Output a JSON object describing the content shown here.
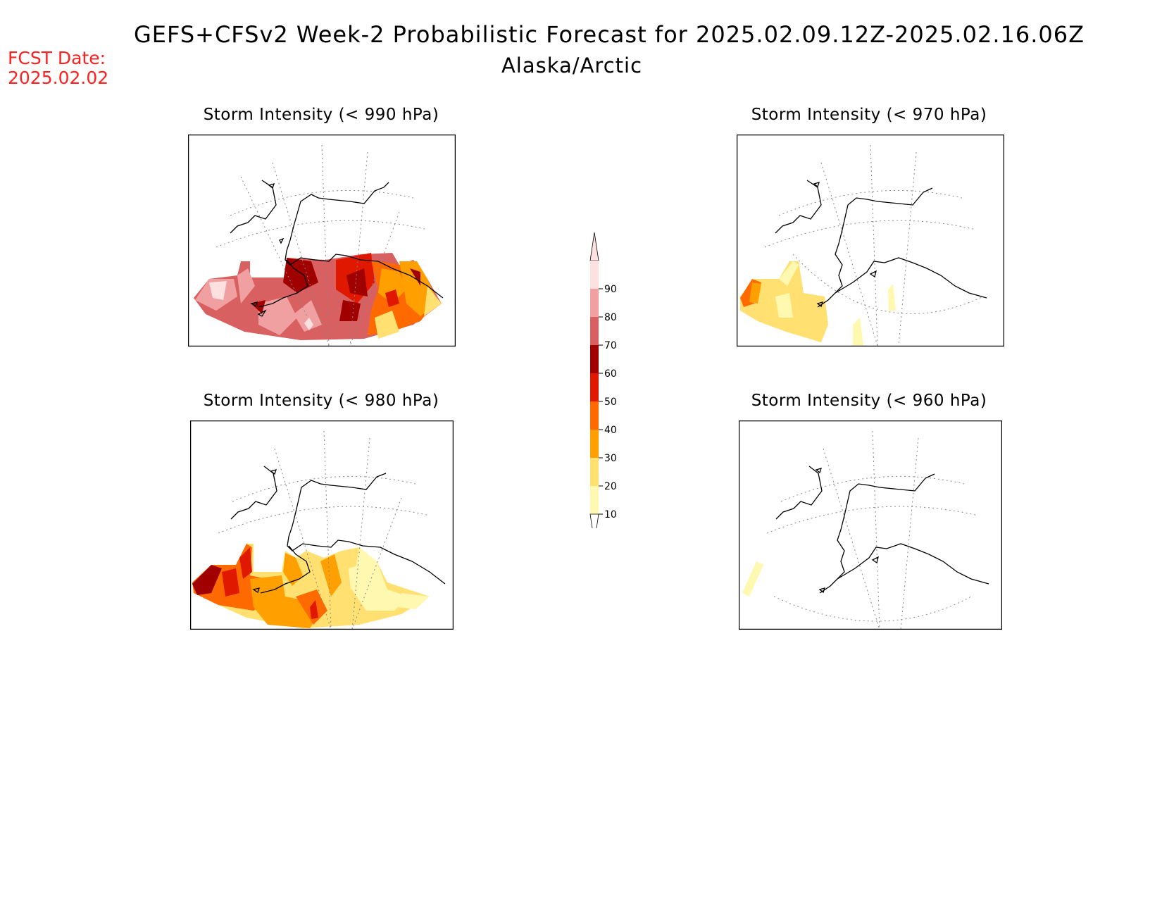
{
  "header": {
    "title": "GEFS+CFSv2 Week-2 Probabilistic Forecast for 2025.02.09.12Z-2025.02.16.06Z",
    "subtitle": "Alaska/Arctic",
    "fcst_label": "FCST Date:",
    "fcst_date": "2025.02.02"
  },
  "panels": [
    {
      "id": "p990",
      "title": "Storm Intensity (< 990 hPa)",
      "threshold_hPa": 990
    },
    {
      "id": "p970",
      "title": "Storm Intensity (< 970 hPa)",
      "threshold_hPa": 970
    },
    {
      "id": "p980",
      "title": "Storm Intensity (< 980 hPa)",
      "threshold_hPa": 980
    },
    {
      "id": "p960",
      "title": "Storm Intensity (< 960 hPa)",
      "threshold_hPa": 960
    }
  ],
  "legend": {
    "labels": [
      "90",
      "80",
      "70",
      "60",
      "50",
      "40",
      "30",
      "20",
      "10"
    ],
    "colors": [
      "#fde0e0",
      "#f0a0a0",
      "#d86060",
      "#a00000",
      "#e01800",
      "#ff6a00",
      "#ffa000",
      "#ffe070",
      "#fff8b0"
    ]
  }
}
